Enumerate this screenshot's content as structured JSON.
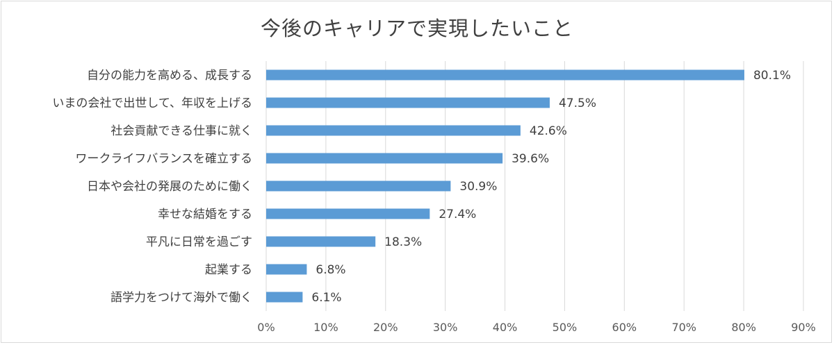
{
  "chart_data": {
    "type": "bar",
    "orientation": "horizontal",
    "title": "今後のキャリアで実現したいこと",
    "categories": [
      "自分の能力を高める、成長する",
      "いまの会社で出世して、年収を上げる",
      "社会貢献できる仕事に就く",
      "ワークライフバランスを確立する",
      "日本や会社の発展のために働く",
      "幸せな結婚をする",
      "平凡に日常を過ごす",
      "起業する",
      "語学力をつけて海外で働く"
    ],
    "values": [
      80.1,
      47.5,
      42.6,
      39.6,
      30.9,
      27.4,
      18.3,
      6.8,
      6.1
    ],
    "value_labels": [
      "80.1%",
      "47.5%",
      "42.6%",
      "39.6%",
      "30.9%",
      "27.4%",
      "18.3%",
      "6.8%",
      "6.1%"
    ],
    "xticks": [
      "0%",
      "10%",
      "20%",
      "30%",
      "40%",
      "50%",
      "60%",
      "70%",
      "80%",
      "90%"
    ],
    "xlim": [
      0,
      90
    ],
    "grid": true,
    "bar_color": "#5b9bd5"
  }
}
